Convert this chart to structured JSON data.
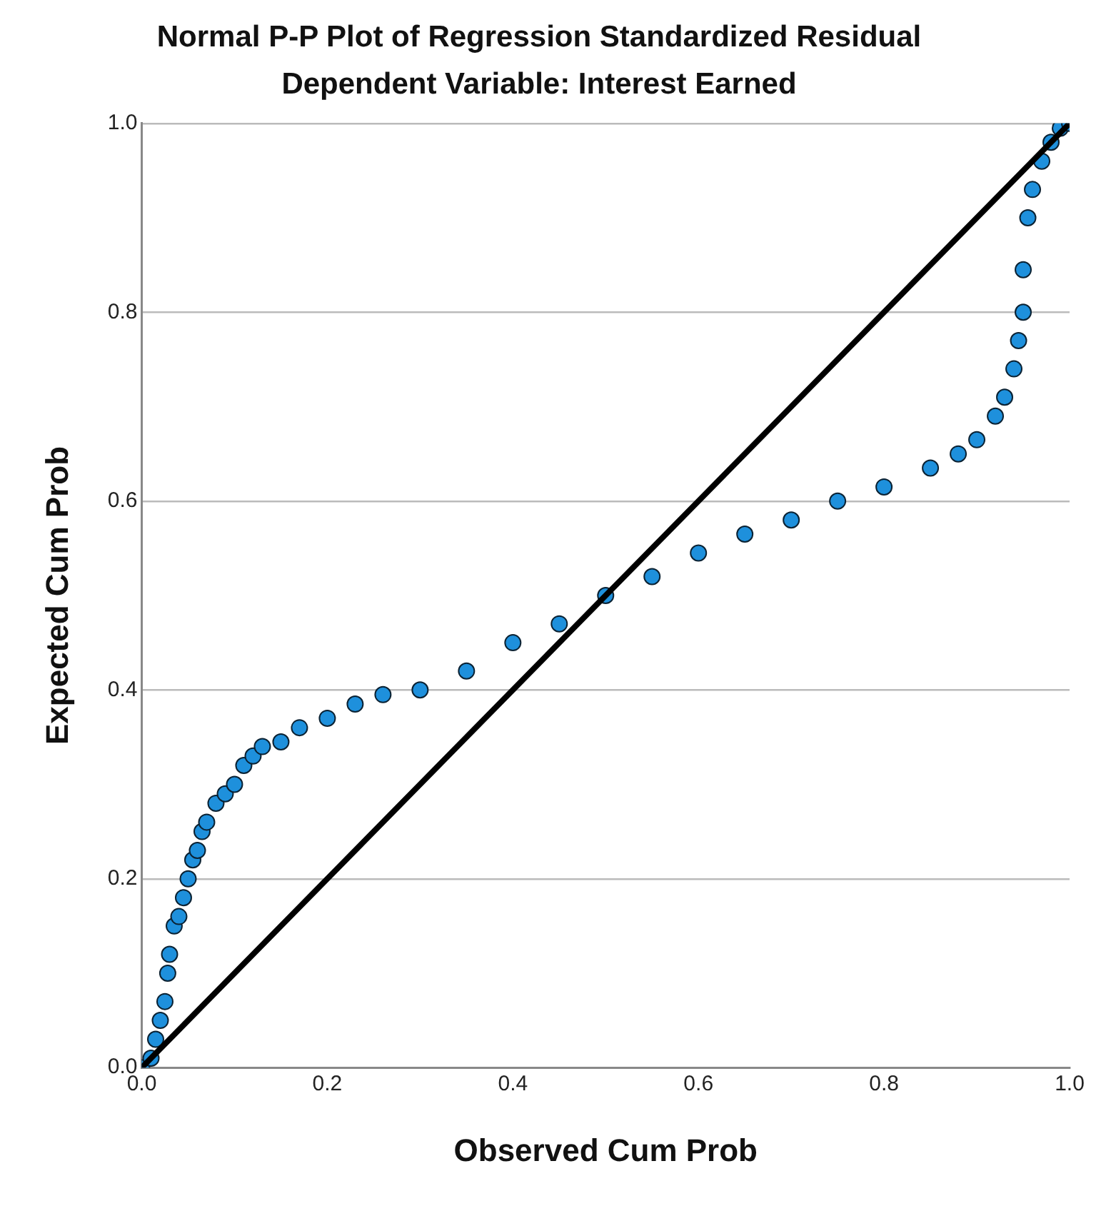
{
  "chart_data": {
    "type": "scatter",
    "title": "Normal P-P Plot of Regression Standardized Residual",
    "subtitle": "Dependent Variable: Interest Earned",
    "xlabel": "Observed Cum Prob",
    "ylabel": "Expected Cum Prob",
    "xlim": [
      0,
      1
    ],
    "ylim": [
      0,
      1
    ],
    "xticks": [
      {
        "value": 0,
        "label": "0.0"
      },
      {
        "value": 0.2,
        "label": "0.2"
      },
      {
        "value": 0.4,
        "label": "0.4"
      },
      {
        "value": 0.6,
        "label": "0.6"
      },
      {
        "value": 0.8,
        "label": "0.8"
      },
      {
        "value": 1,
        "label": "1.0"
      }
    ],
    "yticks": [
      {
        "value": 0,
        "label": "0.0"
      },
      {
        "value": 0.2,
        "label": "0.2"
      },
      {
        "value": 0.4,
        "label": "0.4"
      },
      {
        "value": 0.6,
        "label": "0.6"
      },
      {
        "value": 0.8,
        "label": "0.8"
      },
      {
        "value": 1,
        "label": "1.0"
      }
    ],
    "grid": "y",
    "legend": false,
    "marker": "circle",
    "series": [
      {
        "color": "#1e90dc",
        "x": [
          0,
          0.01,
          0.015,
          0.02,
          0.025,
          0.028,
          0.03,
          0.035,
          0.04,
          0.045,
          0.05,
          0.055,
          0.06,
          0.065,
          0.07,
          0.08,
          0.09,
          0.1,
          0.11,
          0.12,
          0.13,
          0.15,
          0.17,
          0.2,
          0.23,
          0.26,
          0.3,
          0.35,
          0.4,
          0.45,
          0.5,
          0.55,
          0.6,
          0.65,
          0.7,
          0.75,
          0.8,
          0.85,
          0.88,
          0.9,
          0.92,
          0.93,
          0.94,
          0.945,
          0.95,
          0.95,
          0.955,
          0.96,
          0.97,
          0.98,
          0.99,
          1
        ],
        "values": [
          0,
          0.01,
          0.03,
          0.05,
          0.07,
          0.1,
          0.12,
          0.15,
          0.16,
          0.18,
          0.2,
          0.22,
          0.23,
          0.25,
          0.26,
          0.28,
          0.29,
          0.3,
          0.32,
          0.33,
          0.34,
          0.345,
          0.36,
          0.37,
          0.385,
          0.395,
          0.4,
          0.42,
          0.45,
          0.47,
          0.5,
          0.52,
          0.545,
          0.565,
          0.58,
          0.6,
          0.615,
          0.635,
          0.65,
          0.665,
          0.69,
          0.71,
          0.74,
          0.77,
          0.8,
          0.845,
          0.9,
          0.93,
          0.96,
          0.98,
          0.995,
          1
        ]
      },
      {
        "type": "line",
        "color": "#000000",
        "x": [
          0,
          1
        ],
        "values": [
          0,
          1
        ],
        "marker": "none",
        "line_style": "solid"
      }
    ]
  }
}
